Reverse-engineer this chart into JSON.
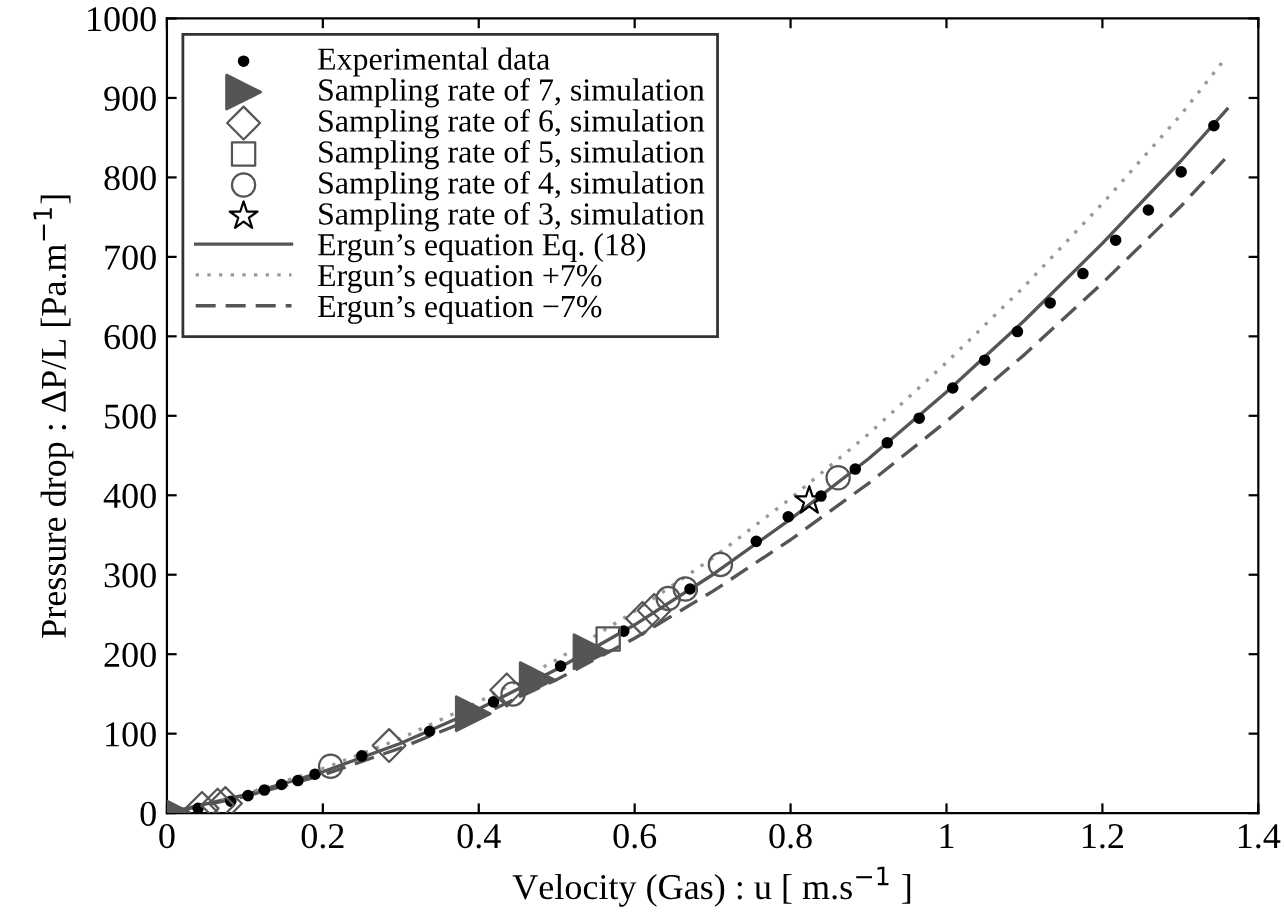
{
  "chart_data": {
    "type": "scatter",
    "xlabel": "Velocity (Gas) : u [ m.s$^{−1}$ ]",
    "ylabel": "Pressure drop : ΔP/L [Pa.m$^{−1}$]",
    "xlim": [
      0,
      1.4
    ],
    "xticks": [
      0,
      0.2,
      0.4,
      0.6,
      0.8,
      1,
      1.2,
      1.4
    ],
    "ylim": [
      0,
      1000
    ],
    "yticks": [
      0,
      100,
      200,
      300,
      400,
      500,
      600,
      700,
      800,
      900,
      1000
    ],
    "grid": false,
    "legend": "top left",
    "series": [
      {
        "name": "Experimental data",
        "marker": "circle",
        "color": "#000000",
        "x": [
          0.04,
          0.06,
          0.082,
          0.104,
          0.125,
          0.147,
          0.168,
          0.19,
          0.25,
          0.337,
          0.419,
          0.505,
          0.586,
          0.671,
          0.756,
          0.797,
          0.839,
          0.883,
          0.924,
          0.965,
          1.008,
          1.049,
          1.091,
          1.133,
          1.175,
          1.217,
          1.259,
          1.301,
          1.343
        ],
        "values": [
          6,
          null,
          15,
          22,
          29,
          36,
          41,
          49,
          72,
          103,
          140,
          185,
          229,
          282,
          342,
          373,
          399,
          433,
          466,
          497,
          535,
          570,
          606,
          642,
          679,
          721,
          759,
          807,
          865
        ]
      },
      {
        "name": "Sampling rate of 7, simulation",
        "marker": "triangle",
        "color": "#555555",
        "x": [
          0.005,
          0.393,
          0.475,
          0.544
        ],
        "values": [
          2,
          125,
          168,
          203
        ]
      },
      {
        "name": "Sampling rate of 6, simulation",
        "marker": "diamond",
        "color": "#555555",
        "x": [
          0.045,
          0.065,
          0.075,
          0.285,
          0.436,
          0.61,
          0.625
        ],
        "values": [
          6,
          10,
          12,
          85,
          155,
          245,
          255
        ]
      },
      {
        "name": "Sampling rate of 5, simulation",
        "marker": "square",
        "color": "#555555",
        "x": [
          0.566
        ],
        "values": [
          219
        ]
      },
      {
        "name": "Sampling rate of 4, simulation",
        "marker": "circle",
        "color": "#555555",
        "x": [
          0.21,
          0.444,
          0.643,
          0.665,
          0.71,
          0.861
        ],
        "values": [
          59,
          150,
          270,
          282,
          313,
          422
        ]
      },
      {
        "name": "Sampling rate of 3, simulation",
        "marker": "star",
        "color": "#000000",
        "x": [
          0.824
        ],
        "values": [
          393
        ]
      },
      {
        "name": "Ergun’s equation Eq. (18)",
        "type": "line",
        "line_style": "solid",
        "color": "#555555",
        "x": [
          0,
          0.1,
          0.2,
          0.3,
          0.4,
          0.5,
          0.6,
          0.7,
          0.8,
          0.9,
          1.0,
          1.1,
          1.2,
          1.3,
          1.36
        ],
        "values": [
          0,
          23,
          52,
          88,
          131,
          181,
          237,
          300,
          370,
          446,
          530,
          620,
          717,
          820,
          886
        ]
      },
      {
        "name": "Ergun’s equation +7%",
        "type": "line",
        "line_style": "dotted",
        "color": "#999999",
        "x": [
          0,
          0.1,
          0.2,
          0.3,
          0.4,
          0.5,
          0.6,
          0.7,
          0.8,
          0.9,
          1.0,
          1.1,
          1.2,
          1.3,
          1.353
        ],
        "values": [
          0,
          24,
          56,
          94,
          140,
          193,
          254,
          321,
          396,
          477,
          567,
          663,
          767,
          878,
          944
        ]
      },
      {
        "name": "Ergun’s equation −7%",
        "type": "line",
        "line_style": "dashed",
        "color": "#555555",
        "x": [
          0,
          0.1,
          0.2,
          0.3,
          0.4,
          0.5,
          0.6,
          0.7,
          0.8,
          0.9,
          1.0,
          1.1,
          1.2,
          1.3,
          1.357
        ],
        "values": [
          0,
          21,
          48,
          82,
          122,
          168,
          220,
          279,
          344,
          415,
          493,
          577,
          667,
          763,
          823
        ]
      }
    ]
  }
}
